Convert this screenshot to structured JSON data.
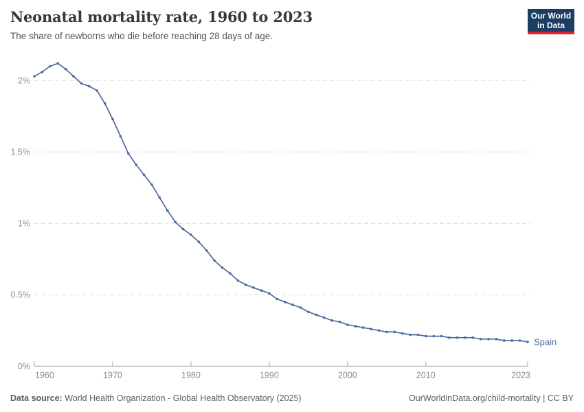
{
  "header": {
    "title": "Neonatal mortality rate, 1960 to 2023",
    "subtitle": "The share of newborns who die before reaching 28 days of age."
  },
  "logo": {
    "line1": "Our World",
    "line2": "in Data",
    "bg_color": "#1d3d63",
    "bar_color": "#e0262c"
  },
  "footer": {
    "datasource_label": "Data source:",
    "datasource": "World Health Organization - Global Health Observatory (2025)",
    "link": "OurWorldinData.org/child-mortality",
    "separator": "|",
    "license": "CC BY"
  },
  "chart_data": {
    "type": "line",
    "title": "Neonatal mortality rate, 1960 to 2023",
    "subtitle": "The share of newborns who die before reaching 28 days of age.",
    "unit": "%",
    "xlim": [
      1960,
      2023
    ],
    "ylim": [
      0,
      2.2
    ],
    "grid": "horizontal-dashed",
    "legend_position": "end-of-line-label",
    "xticks": [
      1960,
      1970,
      1980,
      1990,
      2000,
      2010,
      2023
    ],
    "yticks": [
      {
        "value": 0,
        "label": "0%"
      },
      {
        "value": 0.5,
        "label": "0.5%"
      },
      {
        "value": 1,
        "label": "1%"
      },
      {
        "value": 1.5,
        "label": "1.5%"
      },
      {
        "value": 2,
        "label": "2%"
      }
    ],
    "series": [
      {
        "name": "Spain",
        "color": "#4C6A9C",
        "x": [
          1960,
          1961,
          1962,
          1963,
          1964,
          1965,
          1966,
          1967,
          1968,
          1969,
          1970,
          1971,
          1972,
          1973,
          1974,
          1975,
          1976,
          1977,
          1978,
          1979,
          1980,
          1981,
          1982,
          1983,
          1984,
          1985,
          1986,
          1987,
          1988,
          1989,
          1990,
          1991,
          1992,
          1993,
          1994,
          1995,
          1996,
          1997,
          1998,
          1999,
          2000,
          2001,
          2002,
          2003,
          2004,
          2005,
          2006,
          2007,
          2008,
          2009,
          2010,
          2011,
          2012,
          2013,
          2014,
          2015,
          2016,
          2017,
          2018,
          2019,
          2020,
          2021,
          2022,
          2023
        ],
        "y": [
          2.03,
          2.06,
          2.1,
          2.12,
          2.08,
          2.03,
          1.98,
          1.96,
          1.93,
          1.84,
          1.73,
          1.61,
          1.49,
          1.41,
          1.34,
          1.27,
          1.18,
          1.09,
          1.01,
          0.96,
          0.92,
          0.87,
          0.81,
          0.74,
          0.69,
          0.65,
          0.6,
          0.57,
          0.55,
          0.53,
          0.51,
          0.47,
          0.45,
          0.43,
          0.41,
          0.38,
          0.36,
          0.34,
          0.32,
          0.31,
          0.29,
          0.28,
          0.27,
          0.26,
          0.25,
          0.24,
          0.24,
          0.23,
          0.22,
          0.22,
          0.21,
          0.21,
          0.21,
          0.2,
          0.2,
          0.2,
          0.2,
          0.19,
          0.19,
          0.19,
          0.18,
          0.18,
          0.18,
          0.17
        ]
      }
    ]
  }
}
